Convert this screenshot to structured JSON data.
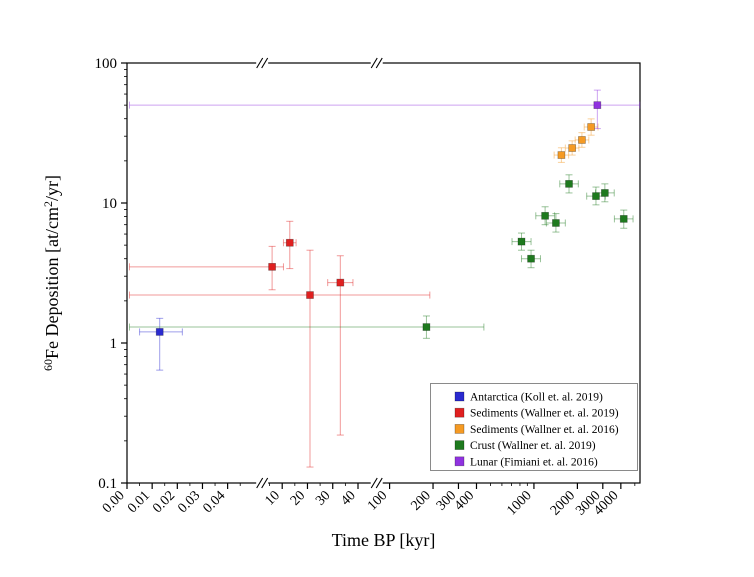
{
  "page": {
    "background": "#ffffff"
  },
  "chart_data": {
    "type": "scatter",
    "title": "",
    "xlabel": "Time BP [kyr]",
    "ylabel": "60Fe Deposition [at/cm2/yr]",
    "ylabel_parts": [
      {
        "text": "60",
        "sup": true
      },
      {
        "text": "Fe Deposition [at/cm",
        "sup": false
      },
      {
        "text": "2",
        "sup": true
      },
      {
        "text": "/yr]",
        "sup": false
      }
    ],
    "x_axis": {
      "scale": "broken (linear | linear | log)",
      "segments": [
        {
          "type": "linear",
          "domain": [
            0,
            0.052
          ],
          "range": [
            0,
            0.255
          ]
        },
        {
          "type": "linear",
          "domain": [
            3.8,
            44
          ],
          "range": [
            0.272,
            0.47
          ]
        },
        {
          "type": "log",
          "domain": [
            93,
            5430
          ],
          "range": [
            0.503,
            1.0
          ]
        }
      ],
      "breaks": [
        0.2635,
        0.4868
      ],
      "ticks": [
        {
          "v": 0,
          "label": "0.00"
        },
        {
          "v": 0.01,
          "label": "0.01"
        },
        {
          "v": 0.02,
          "label": "0.02"
        },
        {
          "v": 0.03,
          "label": "0.03"
        },
        {
          "v": 0.04,
          "label": "0.04"
        },
        {
          "v": 10,
          "label": "10"
        },
        {
          "v": 20,
          "label": "20"
        },
        {
          "v": 30,
          "label": "30"
        },
        {
          "v": 40,
          "label": "40"
        },
        {
          "v": 100,
          "label": "100"
        },
        {
          "v": 200,
          "label": "200"
        },
        {
          "v": 300,
          "label": "300"
        },
        {
          "v": 400,
          "label": "400"
        },
        {
          "v": 1000,
          "label": "1000"
        },
        {
          "v": 2000,
          "label": "2000"
        },
        {
          "v": 3000,
          "label": "3000"
        },
        {
          "v": 4000,
          "label": "4000"
        }
      ],
      "minor_ticks": [
        0.005,
        0.015,
        0.025,
        0.035,
        0.045,
        5,
        15,
        25,
        35,
        500,
        600,
        700,
        800,
        900,
        5000
      ]
    },
    "y_axis": {
      "scale": "log",
      "min": 0.1,
      "max": 100,
      "ticks": [
        {
          "v": 0.1,
          "label": "0.1"
        },
        {
          "v": 1,
          "label": "1"
        },
        {
          "v": 10,
          "label": "10"
        },
        {
          "v": 100,
          "label": "100"
        }
      ],
      "minor": [
        0.2,
        0.3,
        0.4,
        0.5,
        0.6,
        0.7,
        0.8,
        0.9,
        2,
        3,
        4,
        5,
        6,
        7,
        8,
        9,
        20,
        30,
        40,
        50,
        60,
        70,
        80,
        90
      ]
    },
    "legend": {
      "position": "inside-bottom-right"
    },
    "series": [
      {
        "name": "Antarctica (Koll et. al. 2019)",
        "color": "#2a2ad0",
        "points": [
          {
            "x": 0.013,
            "y": 1.2,
            "xlo": 0.005,
            "xhi": 0.022,
            "ylo": 0.64,
            "yhi": 1.5
          }
        ]
      },
      {
        "name": "Sediments (Wallner et. al. 2019)",
        "color": "#e02020",
        "points": [
          {
            "x": 6,
            "y": 3.5,
            "xlo": 0.001,
            "xhi": 10.5,
            "ylo": 2.4,
            "yhi": 4.9
          },
          {
            "x": 13,
            "y": 5.2,
            "xlo": 10.5,
            "xhi": 15.5,
            "ylo": 3.4,
            "yhi": 7.4
          },
          {
            "x": 21,
            "y": 2.2,
            "xlo": 0.001,
            "xhi": 190,
            "ylo": 0.13,
            "yhi": 4.6
          },
          {
            "x": 33,
            "y": 2.7,
            "xlo": 28,
            "xhi": 38,
            "ylo": 0.22,
            "yhi": 4.2
          }
        ]
      },
      {
        "name": "Sediments (Wallner et. al. 2016)",
        "color": "#f59a23",
        "points": [
          {
            "x": 1550,
            "y": 22,
            "xlo": 1380,
            "xhi": 1740,
            "ylo": 19.5,
            "yhi": 24.8
          },
          {
            "x": 1840,
            "y": 24.7,
            "xlo": 1650,
            "xhi": 2050,
            "ylo": 22,
            "yhi": 27.8
          },
          {
            "x": 2150,
            "y": 28.2,
            "xlo": 1930,
            "xhi": 2400,
            "ylo": 25,
            "yhi": 31.8
          },
          {
            "x": 2490,
            "y": 34.9,
            "xlo": 2230,
            "xhi": 2780,
            "ylo": 30.5,
            "yhi": 39.9
          }
        ]
      },
      {
        "name": "Crust (Wallner et. al. 2019)",
        "color": "#1e7a1e",
        "points": [
          {
            "x": 180,
            "y": 1.3,
            "xlo": 0.001,
            "xhi": 450,
            "ylo": 1.08,
            "yhi": 1.56
          },
          {
            "x": 820,
            "y": 5.3,
            "xlo": 705,
            "xhi": 955,
            "ylo": 4.6,
            "yhi": 6.1
          },
          {
            "x": 955,
            "y": 4.0,
            "xlo": 820,
            "xhi": 1110,
            "ylo": 3.45,
            "yhi": 4.6
          },
          {
            "x": 1195,
            "y": 8.1,
            "xlo": 1030,
            "xhi": 1390,
            "ylo": 7.0,
            "yhi": 9.4
          },
          {
            "x": 1420,
            "y": 7.2,
            "xlo": 1220,
            "xhi": 1650,
            "ylo": 6.2,
            "yhi": 8.4
          },
          {
            "x": 1750,
            "y": 13.7,
            "xlo": 1510,
            "xhi": 2030,
            "ylo": 11.8,
            "yhi": 15.9
          },
          {
            "x": 2690,
            "y": 11.2,
            "xlo": 2320,
            "xhi": 3120,
            "ylo": 9.7,
            "yhi": 13.0
          },
          {
            "x": 3100,
            "y": 11.8,
            "xlo": 2670,
            "xhi": 3600,
            "ylo": 10.2,
            "yhi": 13.7
          },
          {
            "x": 4190,
            "y": 7.7,
            "xlo": 3610,
            "xhi": 4860,
            "ylo": 6.6,
            "yhi": 8.9
          }
        ]
      },
      {
        "name": "Lunar (Fimiani et. al. 2016)",
        "color": "#9032e0",
        "points": [
          {
            "x": 2750,
            "y": 50,
            "xlo": 0.001,
            "xhi": 5400,
            "ylo": 34,
            "yhi": 64
          }
        ]
      }
    ]
  }
}
